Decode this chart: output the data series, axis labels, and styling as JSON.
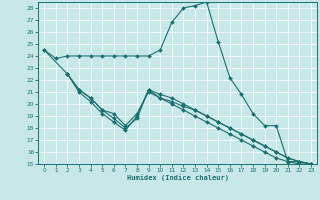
{
  "xlabel": "Humidex (Indice chaleur)",
  "bg_color": "#c8e8e8",
  "line_color": "#1a7070",
  "grid_color": "#ffffff",
  "xlim": [
    -0.5,
    23.5
  ],
  "ylim": [
    15,
    28.5
  ],
  "yticks": [
    15,
    16,
    17,
    18,
    19,
    20,
    21,
    22,
    23,
    24,
    25,
    26,
    27,
    28
  ],
  "xticks": [
    0,
    1,
    2,
    3,
    4,
    5,
    6,
    7,
    8,
    9,
    10,
    11,
    12,
    13,
    14,
    15,
    16,
    17,
    18,
    19,
    20,
    21,
    22,
    23
  ],
  "lines": [
    {
      "x": [
        0,
        1,
        2,
        3,
        4,
        5,
        6,
        7,
        8,
        9,
        10,
        11,
        12,
        13,
        14,
        15,
        16,
        17,
        18,
        19,
        20,
        21,
        22,
        23
      ],
      "y": [
        24.5,
        23.8,
        24.0,
        24.0,
        24.0,
        24.0,
        24.0,
        24.0,
        24.0,
        24.0,
        24.5,
        26.8,
        28.0,
        28.2,
        28.5,
        25.2,
        22.2,
        20.8,
        19.2,
        18.2,
        18.2,
        15.2,
        15.2,
        15.0
      ]
    },
    {
      "x": [
        0,
        2,
        3,
        4,
        5,
        6,
        7,
        8,
        9,
        10,
        11,
        12,
        13,
        14,
        15,
        16,
        17,
        18,
        19,
        20,
        21,
        22,
        23
      ],
      "y": [
        24.5,
        22.5,
        21.2,
        20.5,
        19.5,
        19.2,
        18.2,
        19.2,
        21.0,
        20.5,
        20.2,
        19.8,
        19.5,
        19.0,
        18.5,
        18.0,
        17.5,
        17.0,
        16.5,
        16.0,
        15.5,
        15.2,
        15.0
      ]
    },
    {
      "x": [
        2,
        3,
        4,
        5,
        6,
        7,
        8,
        9,
        10,
        11,
        12,
        13,
        14,
        15,
        16,
        17,
        18,
        19,
        20,
        21,
        22,
        23
      ],
      "y": [
        22.5,
        21.2,
        20.5,
        19.5,
        18.8,
        18.0,
        18.8,
        21.2,
        20.8,
        20.5,
        20.0,
        19.5,
        19.0,
        18.5,
        18.0,
        17.5,
        17.0,
        16.5,
        16.0,
        15.5,
        15.2,
        15.0
      ]
    },
    {
      "x": [
        2,
        3,
        4,
        5,
        6,
        7,
        8,
        9,
        10,
        11,
        12,
        13,
        14,
        15,
        16,
        17,
        18,
        19,
        20,
        21,
        22,
        23
      ],
      "y": [
        22.5,
        21.0,
        20.2,
        19.2,
        18.5,
        17.8,
        19.0,
        21.2,
        20.5,
        20.0,
        19.5,
        19.0,
        18.5,
        18.0,
        17.5,
        17.0,
        16.5,
        16.0,
        15.5,
        15.2,
        15.0,
        15.0
      ]
    }
  ]
}
